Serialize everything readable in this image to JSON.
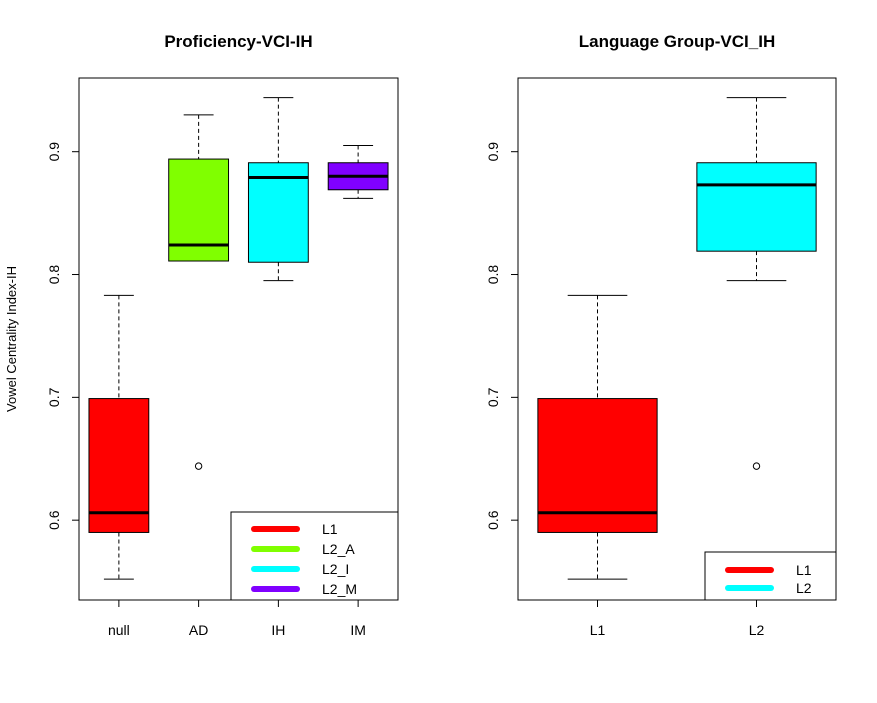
{
  "chart_data": [
    {
      "type": "boxplot",
      "title": "Proficiency-VCI-IH",
      "ylabel": "Vowel Centrality Index-IH",
      "xlabel": "",
      "ylim": [
        0.535,
        0.96
      ],
      "yticks": [
        0.6,
        0.7,
        0.8,
        0.9
      ],
      "categories": [
        "null",
        "AD",
        "IH",
        "IM"
      ],
      "boxes": [
        {
          "category": "null",
          "color": "#FF0000",
          "whisker_low": 0.552,
          "q1": 0.59,
          "median": 0.606,
          "q3": 0.699,
          "whisker_high": 0.783,
          "outliers": []
        },
        {
          "category": "AD",
          "color": "#80FF00",
          "whisker_low": 0.811,
          "q1": 0.811,
          "median": 0.824,
          "q3": 0.894,
          "whisker_high": 0.93,
          "outliers": [
            0.644
          ]
        },
        {
          "category": "IH",
          "color": "#00FFFF",
          "whisker_low": 0.795,
          "q1": 0.81,
          "median": 0.879,
          "q3": 0.891,
          "whisker_high": 0.944,
          "outliers": []
        },
        {
          "category": "IM",
          "color": "#8000FF",
          "whisker_low": 0.862,
          "q1": 0.869,
          "median": 0.88,
          "q3": 0.891,
          "whisker_high": 0.905,
          "outliers": []
        }
      ],
      "legend": {
        "position": "bottom-right",
        "entries": [
          {
            "label": "L1",
            "color": "#FF0000"
          },
          {
            "label": "L2_A",
            "color": "#80FF00"
          },
          {
            "label": "L2_I",
            "color": "#00FFFF"
          },
          {
            "label": "L2_M",
            "color": "#8000FF"
          }
        ]
      }
    },
    {
      "type": "boxplot",
      "title": "Language Group-VCI_IH",
      "ylabel": "",
      "xlabel": "",
      "ylim": [
        0.535,
        0.96
      ],
      "yticks": [
        0.6,
        0.7,
        0.8,
        0.9
      ],
      "categories": [
        "L1",
        "L2"
      ],
      "boxes": [
        {
          "category": "L1",
          "color": "#FF0000",
          "whisker_low": 0.552,
          "q1": 0.59,
          "median": 0.606,
          "q3": 0.699,
          "whisker_high": 0.783,
          "outliers": []
        },
        {
          "category": "L2",
          "color": "#00FFFF",
          "whisker_low": 0.795,
          "q1": 0.819,
          "median": 0.873,
          "q3": 0.891,
          "whisker_high": 0.944,
          "outliers": [
            0.644
          ]
        }
      ],
      "legend": {
        "position": "bottom-right",
        "entries": [
          {
            "label": "L1",
            "color": "#FF0000"
          },
          {
            "label": "L2",
            "color": "#00FFFF"
          }
        ]
      }
    }
  ]
}
